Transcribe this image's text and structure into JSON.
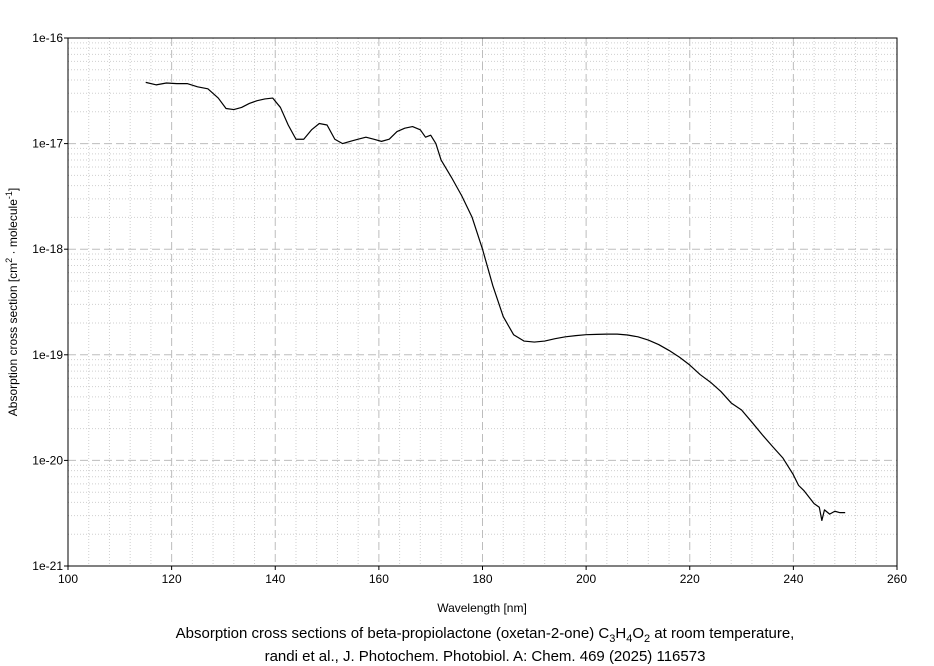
{
  "chart_data": {
    "type": "line",
    "title": "",
    "xlabel": "Wavelength [nm]",
    "ylabel": {
      "prefix": "Absorption cross section [cm",
      "sup1": "2",
      "middle": " · molecule",
      "sup2": "-1",
      "suffix": "]"
    },
    "x_ticks": [
      100,
      120,
      140,
      160,
      180,
      200,
      220,
      240,
      260
    ],
    "y_ticks": [
      {
        "value": 1e-21,
        "label": "1e-21"
      },
      {
        "value": 1e-20,
        "label": "1e-20"
      },
      {
        "value": 1e-19,
        "label": "1e-19"
      },
      {
        "value": 1e-18,
        "label": "1e-18"
      },
      {
        "value": 1e-17,
        "label": "1e-17"
      },
      {
        "value": 1e-16,
        "label": "1e-16"
      }
    ],
    "xlim": [
      100,
      260
    ],
    "ylim": [
      1e-21,
      1e-16
    ],
    "y_scale": "log",
    "grid": true,
    "series": [
      {
        "color": "#000000",
        "x": [
          115,
          117,
          119,
          121,
          123,
          125,
          127,
          129,
          130.5,
          132,
          133.5,
          135,
          136.5,
          138,
          139.5,
          141,
          142.5,
          144,
          145.5,
          147,
          148.5,
          150,
          151.5,
          153,
          154.5,
          156,
          157.5,
          159,
          160.5,
          162,
          163.5,
          165,
          166.5,
          168,
          169,
          170,
          171,
          172,
          174,
          176,
          178,
          180,
          182,
          184,
          186,
          188,
          190,
          192,
          194,
          196,
          198,
          200,
          202,
          204,
          206,
          208,
          210,
          212,
          214,
          216,
          218,
          220,
          222,
          224,
          226,
          228,
          230,
          232,
          234,
          236,
          238,
          240,
          241,
          242,
          243,
          244,
          245,
          245.5,
          246,
          247,
          248,
          249,
          250
        ],
        "y": [
          3.8e-17,
          3.6e-17,
          3.75e-17,
          3.7e-17,
          3.7e-17,
          3.45e-17,
          3.3e-17,
          2.7e-17,
          2.15e-17,
          2.1e-17,
          2.2e-17,
          2.4e-17,
          2.55e-17,
          2.65e-17,
          2.7e-17,
          2.2e-17,
          1.5e-17,
          1.1e-17,
          1.1e-17,
          1.35e-17,
          1.55e-17,
          1.5e-17,
          1.1e-17,
          1e-17,
          1.05e-17,
          1.1e-17,
          1.15e-17,
          1.1e-17,
          1.05e-17,
          1.1e-17,
          1.3e-17,
          1.4e-17,
          1.45e-17,
          1.35e-17,
          1.15e-17,
          1.2e-17,
          1e-17,
          7e-18,
          4.8e-18,
          3.2e-18,
          2e-18,
          1e-18,
          4.5e-19,
          2.3e-19,
          1.55e-19,
          1.35e-19,
          1.32e-19,
          1.35e-19,
          1.42e-19,
          1.48e-19,
          1.52e-19,
          1.55e-19,
          1.56e-19,
          1.57e-19,
          1.57e-19,
          1.54e-19,
          1.48e-19,
          1.38e-19,
          1.25e-19,
          1.1e-19,
          9.5e-20,
          8e-20,
          6.5e-20,
          5.5e-20,
          4.5e-20,
          3.5e-20,
          3e-20,
          2.3e-20,
          1.75e-20,
          1.35e-20,
          1.05e-20,
          7.3e-21,
          5.8e-21,
          5.2e-21,
          4.5e-21,
          3.9e-21,
          3.6e-21,
          2.7e-21,
          3.4e-21,
          3.1e-21,
          3.3e-21,
          3.2e-21,
          3.2e-21
        ]
      }
    ],
    "caption": {
      "line1_prefix": "Absorption cross sections of beta-propiolactone (oxetan-2-one) C",
      "sub1": "3",
      "mid1": "H",
      "sub2": "4",
      "mid2": "O",
      "sub3": "2",
      "line1_suffix": " at room temperature,",
      "line2": "randi et al., J. Photochem. Photobiol. A: Chem. 469 (2025) 116573"
    }
  }
}
